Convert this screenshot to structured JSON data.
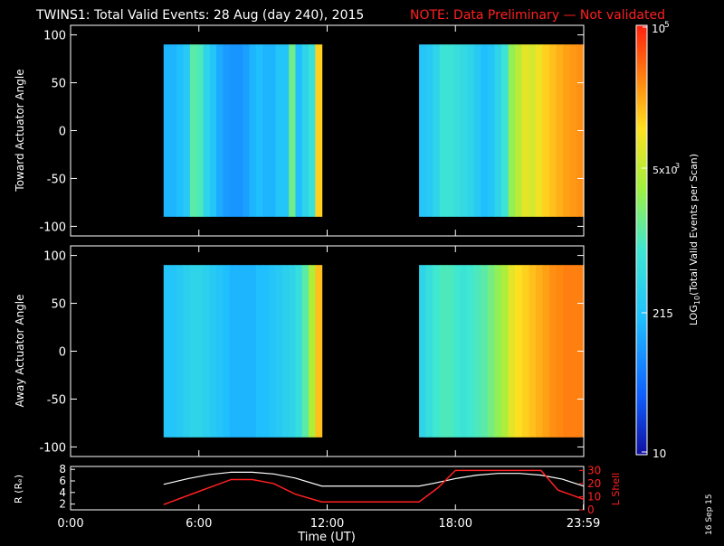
{
  "header": {
    "title": "TWINS1: Total Valid Events: 28 Aug (day 240), 2015",
    "note": "NOTE: Data Preliminary — Not validated"
  },
  "footer": {
    "stamp": "16 Sep 15"
  },
  "colors": {
    "background": "#000000",
    "note": "#ff2020",
    "lshell_line": "#ff2020",
    "r_line": "#ffffff",
    "colormap": [
      "#1010a0",
      "#1060ff",
      "#20c0ff",
      "#40e8d0",
      "#a0f040",
      "#ffe020",
      "#ff8010",
      "#ff2010"
    ]
  },
  "chart_data": [
    {
      "type": "heatmap",
      "title": "",
      "xlabel": "",
      "ylabel": "Toward Actuator Angle",
      "xlim": [
        0,
        24
      ],
      "ylim": [
        -110,
        110
      ],
      "yticks": [
        100,
        50,
        0,
        -50,
        -100
      ],
      "ytick_labels": [
        "100",
        "50",
        "0",
        "-50",
        "-100"
      ],
      "angle_range": [
        -90,
        90
      ],
      "segments": [
        {
          "start_h": 4.35,
          "end_h": 11.75,
          "columns": [
            0.3,
            0.3,
            0.32,
            0.36,
            0.52,
            0.5,
            0.4,
            0.34,
            0.28,
            0.25,
            0.24,
            0.24,
            0.26,
            0.3,
            0.32,
            0.3,
            0.3,
            0.34,
            0.34,
            0.55,
            0.32,
            0.4,
            0.45,
            0.78
          ]
        },
        {
          "start_h": 16.3,
          "end_h": 24.0,
          "columns": [
            0.34,
            0.36,
            0.4,
            0.46,
            0.46,
            0.44,
            0.42,
            0.4,
            0.36,
            0.32,
            0.34,
            0.4,
            0.46,
            0.6,
            0.66,
            0.72,
            0.7,
            0.74,
            0.78,
            0.8,
            0.82,
            0.84,
            0.85,
            0.86
          ]
        }
      ]
    },
    {
      "type": "heatmap",
      "title": "",
      "xlabel": "",
      "ylabel": "Away Actuator Angle",
      "xlim": [
        0,
        24
      ],
      "ylim": [
        -110,
        110
      ],
      "yticks": [
        100,
        50,
        0,
        -50,
        -100
      ],
      "ytick_labels": [
        "100",
        "50",
        "0",
        "-50",
        "-100"
      ],
      "angle_range": [
        -90,
        90
      ],
      "segments": [
        {
          "start_h": 4.35,
          "end_h": 11.75,
          "columns": [
            0.34,
            0.34,
            0.36,
            0.38,
            0.4,
            0.4,
            0.38,
            0.36,
            0.34,
            0.32,
            0.3,
            0.3,
            0.3,
            0.3,
            0.32,
            0.32,
            0.34,
            0.36,
            0.38,
            0.4,
            0.44,
            0.52,
            0.64,
            0.8
          ]
        },
        {
          "start_h": 16.3,
          "end_h": 24.0,
          "columns": [
            0.4,
            0.44,
            0.48,
            0.5,
            0.5,
            0.48,
            0.46,
            0.48,
            0.5,
            0.52,
            0.56,
            0.6,
            0.64,
            0.72,
            0.76,
            0.78,
            0.8,
            0.82,
            0.84,
            0.86,
            0.87,
            0.88,
            0.88,
            0.88
          ]
        }
      ]
    },
    {
      "type": "line",
      "title": "",
      "xlabel": "Time (UT)",
      "ylabel": "R (Rₑ)",
      "y2label": "L Shell",
      "xlim": [
        0,
        24
      ],
      "xticks": [
        0,
        6,
        12,
        18,
        23.983
      ],
      "xtick_labels": [
        "0:00",
        "6:00",
        "12:00",
        "18:00",
        "23:59"
      ],
      "ylim": [
        1,
        8.5
      ],
      "yticks": [
        8,
        6,
        4,
        2
      ],
      "ytick_labels": [
        "8",
        "6",
        "4",
        "2"
      ],
      "y2lim": [
        0,
        33
      ],
      "y2ticks": [
        30,
        20,
        10,
        0
      ],
      "y2tick_labels": [
        "30",
        "20",
        "10",
        "0"
      ],
      "series": [
        {
          "axis": "left",
          "x": [
            4.35,
            5.5,
            6.5,
            7.5,
            8.5,
            9.5,
            10.5,
            11.75,
            16.3,
            17.0,
            18.0,
            19.0,
            20.0,
            21.0,
            22.0,
            23.0,
            24.0
          ],
          "y": [
            5.4,
            6.4,
            7.1,
            7.5,
            7.5,
            7.2,
            6.5,
            5.1,
            5.1,
            5.6,
            6.4,
            7.0,
            7.3,
            7.3,
            7.0,
            6.3,
            5.1
          ]
        },
        {
          "axis": "right",
          "x": [
            4.35,
            6.0,
            7.5,
            8.5,
            9.5,
            10.5,
            11.75,
            16.3,
            17.2,
            18.0,
            22.0,
            22.8,
            24.0
          ],
          "y": [
            4,
            14,
            23,
            23,
            20,
            12,
            6,
            6,
            17,
            30,
            30,
            15,
            8
          ]
        }
      ]
    }
  ]
}
